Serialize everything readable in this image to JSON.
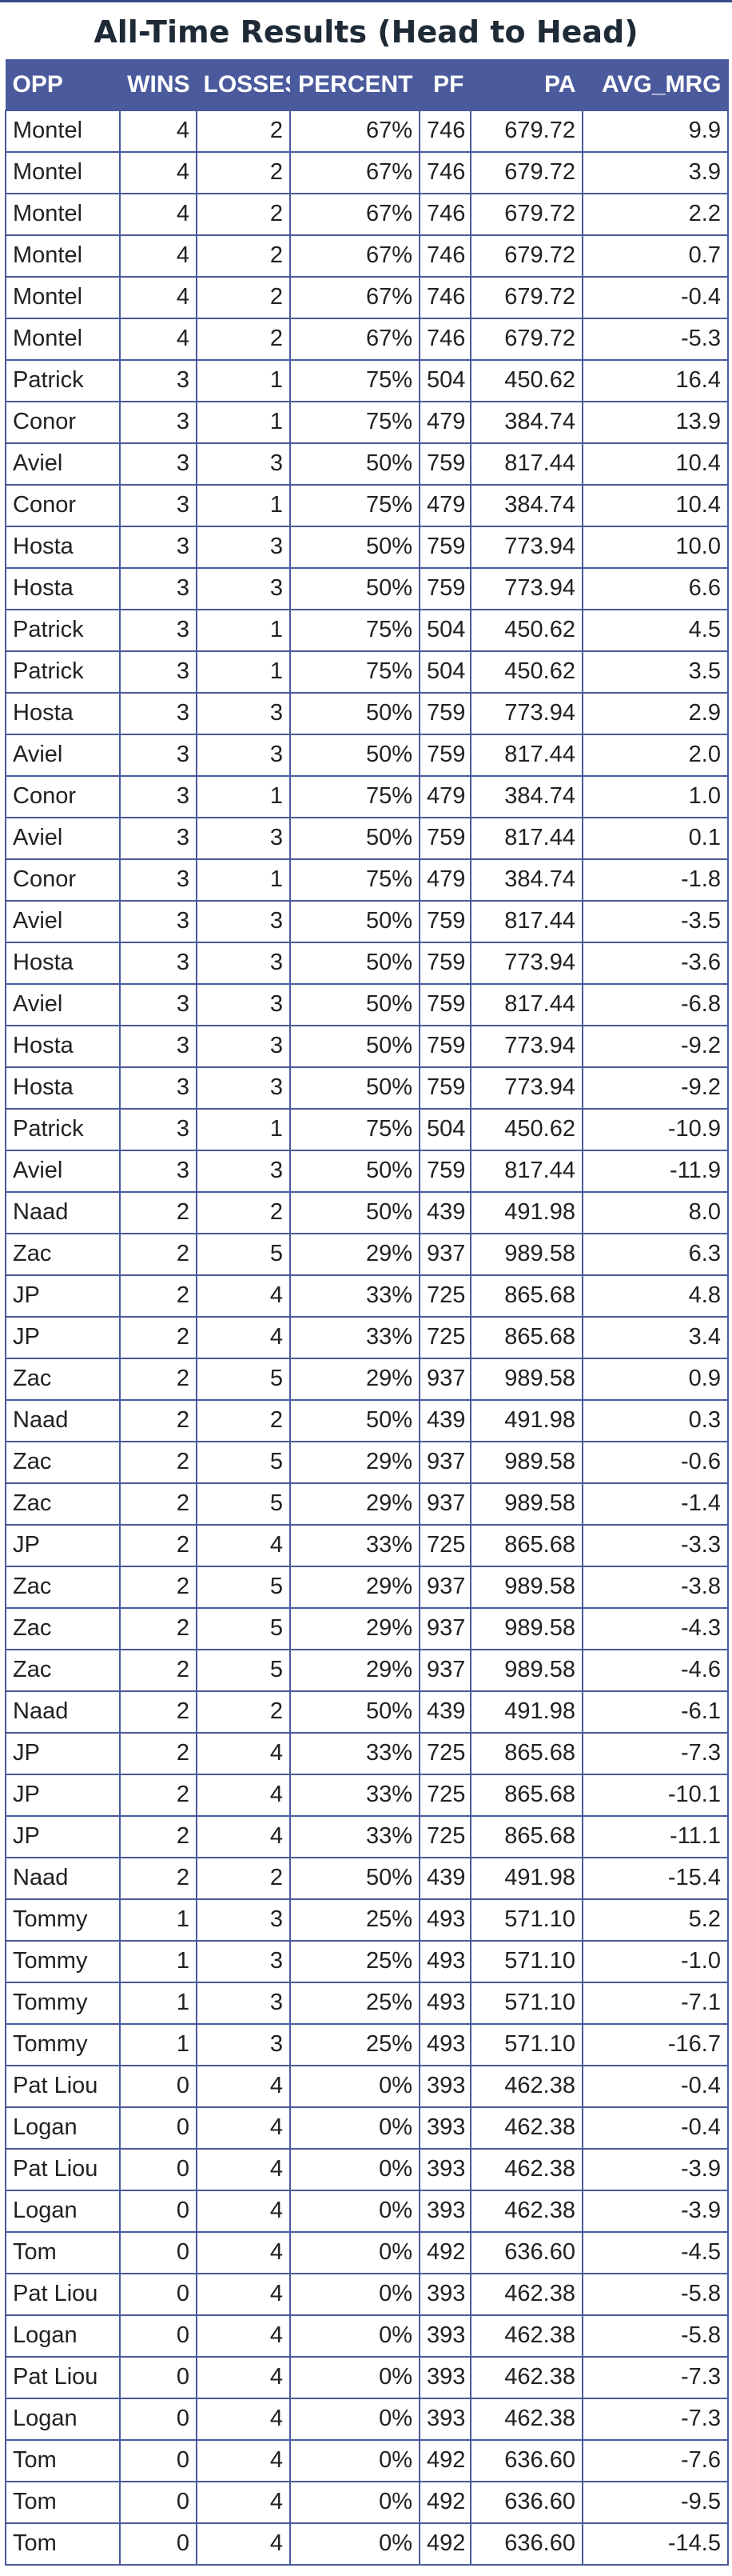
{
  "chart_data": {
    "type": "table",
    "title": "All-Time Results (Head to Head)",
    "columns": [
      "OPP",
      "WINS",
      "LOSSES",
      "PERCENT",
      "PF",
      "PA",
      "AVG_MRG"
    ],
    "rows": [
      [
        "Montel",
        "4",
        "2",
        "67%",
        "746",
        "679.72",
        "9.9"
      ],
      [
        "Montel",
        "4",
        "2",
        "67%",
        "746",
        "679.72",
        "3.9"
      ],
      [
        "Montel",
        "4",
        "2",
        "67%",
        "746",
        "679.72",
        "2.2"
      ],
      [
        "Montel",
        "4",
        "2",
        "67%",
        "746",
        "679.72",
        "0.7"
      ],
      [
        "Montel",
        "4",
        "2",
        "67%",
        "746",
        "679.72",
        "-0.4"
      ],
      [
        "Montel",
        "4",
        "2",
        "67%",
        "746",
        "679.72",
        "-5.3"
      ],
      [
        "Patrick",
        "3",
        "1",
        "75%",
        "504",
        "450.62",
        "16.4"
      ],
      [
        "Conor",
        "3",
        "1",
        "75%",
        "479",
        "384.74",
        "13.9"
      ],
      [
        "Aviel",
        "3",
        "3",
        "50%",
        "759",
        "817.44",
        "10.4"
      ],
      [
        "Conor",
        "3",
        "1",
        "75%",
        "479",
        "384.74",
        "10.4"
      ],
      [
        "Hosta",
        "3",
        "3",
        "50%",
        "759",
        "773.94",
        "10.0"
      ],
      [
        "Hosta",
        "3",
        "3",
        "50%",
        "759",
        "773.94",
        "6.6"
      ],
      [
        "Patrick",
        "3",
        "1",
        "75%",
        "504",
        "450.62",
        "4.5"
      ],
      [
        "Patrick",
        "3",
        "1",
        "75%",
        "504",
        "450.62",
        "3.5"
      ],
      [
        "Hosta",
        "3",
        "3",
        "50%",
        "759",
        "773.94",
        "2.9"
      ],
      [
        "Aviel",
        "3",
        "3",
        "50%",
        "759",
        "817.44",
        "2.0"
      ],
      [
        "Conor",
        "3",
        "1",
        "75%",
        "479",
        "384.74",
        "1.0"
      ],
      [
        "Aviel",
        "3",
        "3",
        "50%",
        "759",
        "817.44",
        "0.1"
      ],
      [
        "Conor",
        "3",
        "1",
        "75%",
        "479",
        "384.74",
        "-1.8"
      ],
      [
        "Aviel",
        "3",
        "3",
        "50%",
        "759",
        "817.44",
        "-3.5"
      ],
      [
        "Hosta",
        "3",
        "3",
        "50%",
        "759",
        "773.94",
        "-3.6"
      ],
      [
        "Aviel",
        "3",
        "3",
        "50%",
        "759",
        "817.44",
        "-6.8"
      ],
      [
        "Hosta",
        "3",
        "3",
        "50%",
        "759",
        "773.94",
        "-9.2"
      ],
      [
        "Hosta",
        "3",
        "3",
        "50%",
        "759",
        "773.94",
        "-9.2"
      ],
      [
        "Patrick",
        "3",
        "1",
        "75%",
        "504",
        "450.62",
        "-10.9"
      ],
      [
        "Aviel",
        "3",
        "3",
        "50%",
        "759",
        "817.44",
        "-11.9"
      ],
      [
        "Naad",
        "2",
        "2",
        "50%",
        "439",
        "491.98",
        "8.0"
      ],
      [
        "Zac",
        "2",
        "5",
        "29%",
        "937",
        "989.58",
        "6.3"
      ],
      [
        "JP",
        "2",
        "4",
        "33%",
        "725",
        "865.68",
        "4.8"
      ],
      [
        "JP",
        "2",
        "4",
        "33%",
        "725",
        "865.68",
        "3.4"
      ],
      [
        "Zac",
        "2",
        "5",
        "29%",
        "937",
        "989.58",
        "0.9"
      ],
      [
        "Naad",
        "2",
        "2",
        "50%",
        "439",
        "491.98",
        "0.3"
      ],
      [
        "Zac",
        "2",
        "5",
        "29%",
        "937",
        "989.58",
        "-0.6"
      ],
      [
        "Zac",
        "2",
        "5",
        "29%",
        "937",
        "989.58",
        "-1.4"
      ],
      [
        "JP",
        "2",
        "4",
        "33%",
        "725",
        "865.68",
        "-3.3"
      ],
      [
        "Zac",
        "2",
        "5",
        "29%",
        "937",
        "989.58",
        "-3.8"
      ],
      [
        "Zac",
        "2",
        "5",
        "29%",
        "937",
        "989.58",
        "-4.3"
      ],
      [
        "Zac",
        "2",
        "5",
        "29%",
        "937",
        "989.58",
        "-4.6"
      ],
      [
        "Naad",
        "2",
        "2",
        "50%",
        "439",
        "491.98",
        "-6.1"
      ],
      [
        "JP",
        "2",
        "4",
        "33%",
        "725",
        "865.68",
        "-7.3"
      ],
      [
        "JP",
        "2",
        "4",
        "33%",
        "725",
        "865.68",
        "-10.1"
      ],
      [
        "JP",
        "2",
        "4",
        "33%",
        "725",
        "865.68",
        "-11.1"
      ],
      [
        "Naad",
        "2",
        "2",
        "50%",
        "439",
        "491.98",
        "-15.4"
      ],
      [
        "Tommy",
        "1",
        "3",
        "25%",
        "493",
        "571.10",
        "5.2"
      ],
      [
        "Tommy",
        "1",
        "3",
        "25%",
        "493",
        "571.10",
        "-1.0"
      ],
      [
        "Tommy",
        "1",
        "3",
        "25%",
        "493",
        "571.10",
        "-7.1"
      ],
      [
        "Tommy",
        "1",
        "3",
        "25%",
        "493",
        "571.10",
        "-16.7"
      ],
      [
        "Pat Liou",
        "0",
        "4",
        "0%",
        "393",
        "462.38",
        "-0.4"
      ],
      [
        "Logan",
        "0",
        "4",
        "0%",
        "393",
        "462.38",
        "-0.4"
      ],
      [
        "Pat Liou",
        "0",
        "4",
        "0%",
        "393",
        "462.38",
        "-3.9"
      ],
      [
        "Logan",
        "0",
        "4",
        "0%",
        "393",
        "462.38",
        "-3.9"
      ],
      [
        "Tom",
        "0",
        "4",
        "0%",
        "492",
        "636.60",
        "-4.5"
      ],
      [
        "Pat Liou",
        "0",
        "4",
        "0%",
        "393",
        "462.38",
        "-5.8"
      ],
      [
        "Logan",
        "0",
        "4",
        "0%",
        "393",
        "462.38",
        "-5.8"
      ],
      [
        "Pat Liou",
        "0",
        "4",
        "0%",
        "393",
        "462.38",
        "-7.3"
      ],
      [
        "Logan",
        "0",
        "4",
        "0%",
        "393",
        "462.38",
        "-7.3"
      ],
      [
        "Tom",
        "0",
        "4",
        "0%",
        "492",
        "636.60",
        "-7.6"
      ],
      [
        "Tom",
        "0",
        "4",
        "0%",
        "492",
        "636.60",
        "-9.5"
      ],
      [
        "Tom",
        "0",
        "4",
        "0%",
        "492",
        "636.60",
        "-14.5"
      ]
    ],
    "header_color": "#4a5a9c",
    "border_color": "#4a5a9c"
  }
}
